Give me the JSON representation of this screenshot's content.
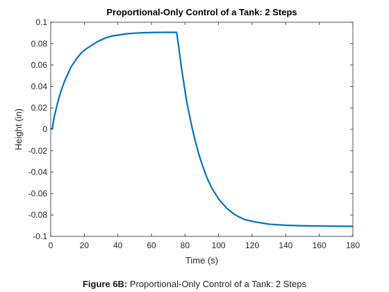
{
  "chart_data": {
    "type": "line",
    "title": "Proportional-Only Control of a Tank: 2 Steps",
    "xlabel": "Time (s)",
    "ylabel": "Height (in)",
    "xlim": [
      0,
      180
    ],
    "ylim": [
      -0.1,
      0.1
    ],
    "xticks": [
      0,
      20,
      40,
      60,
      80,
      100,
      120,
      140,
      160,
      180
    ],
    "yticks": [
      0.1,
      0.08,
      0.06,
      0.04,
      0.02,
      0,
      -0.02,
      -0.04,
      -0.06,
      -0.08,
      -0.1
    ],
    "xtick_labels": [
      "0",
      "20",
      "40",
      "60",
      "80",
      "100",
      "120",
      "140",
      "160",
      "180"
    ],
    "ytick_labels": [
      "0.1",
      "0.08",
      "0.06",
      "0.04",
      "0.02",
      "0",
      "-0.02",
      "-0.04",
      "-0.06",
      "-0.08",
      "-0.1"
    ],
    "grid": false,
    "series": [
      {
        "color": "#0072BD",
        "x": [
          0,
          1,
          2,
          4,
          6,
          8,
          10,
          12,
          15,
          18,
          21,
          24,
          28,
          32,
          36,
          40,
          45,
          50,
          55,
          60,
          65,
          70,
          75,
          76,
          77,
          78,
          79,
          80,
          81,
          82,
          84,
          86,
          88,
          90,
          93,
          96,
          100,
          105,
          110,
          115,
          120,
          130,
          140,
          150,
          160,
          170,
          180
        ],
        "y": [
          0,
          0.001,
          0.011,
          0.024,
          0.035,
          0.044,
          0.051,
          0.058,
          0.065,
          0.071,
          0.075,
          0.078,
          0.082,
          0.085,
          0.087,
          0.088,
          0.0892,
          0.0898,
          0.0902,
          0.0904,
          0.0905,
          0.0906,
          0.0906,
          0.08,
          0.068,
          0.056,
          0.046,
          0.036,
          0.026,
          0.018,
          0.003,
          -0.01,
          -0.022,
          -0.032,
          -0.045,
          -0.055,
          -0.065,
          -0.074,
          -0.08,
          -0.084,
          -0.086,
          -0.0886,
          -0.0896,
          -0.0901,
          -0.0903,
          -0.0905,
          -0.0906
        ]
      }
    ]
  },
  "caption": {
    "label": "Figure 6B:",
    "text": " Proportional-Only Control of a Tank: 2 Steps"
  },
  "colors": {
    "line": "#0072BD",
    "axes": "#262626",
    "background": "#ffffff"
  }
}
